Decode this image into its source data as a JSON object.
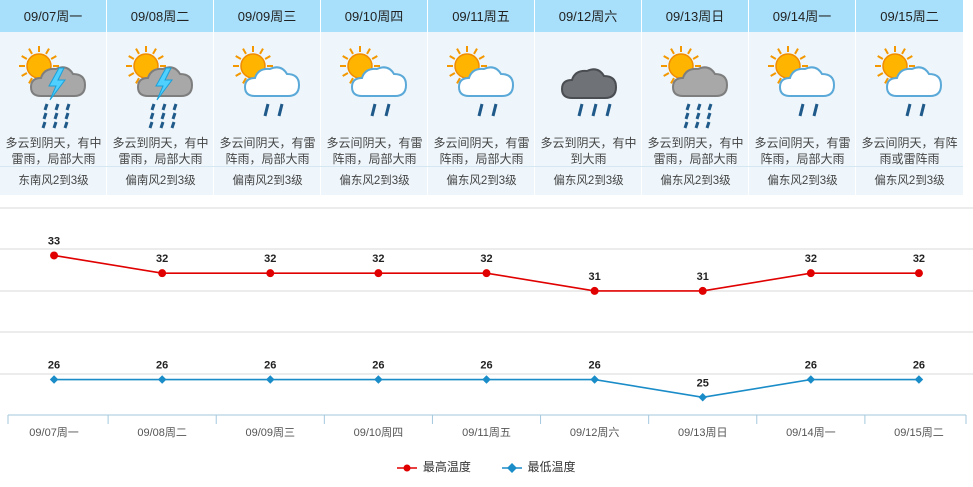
{
  "days": [
    {
      "date": "09/07周一",
      "desc": "多云到阴天，有中雷雨，局部大雨",
      "wind": "东南风2到3级",
      "icon": "partly-cloudy-thunderstorm-icon"
    },
    {
      "date": "09/08周二",
      "desc": "多云到阴天，有中雷雨，局部大雨",
      "wind": "偏南风2到3级",
      "icon": "partly-cloudy-thunderstorm-icon"
    },
    {
      "date": "09/09周三",
      "desc": "多云间阴天，有雷阵雨，局部大雨",
      "wind": "偏南风2到3级",
      "icon": "partly-cloudy-rain-icon"
    },
    {
      "date": "09/10周四",
      "desc": "多云间阴天，有雷阵雨，局部大雨",
      "wind": "偏东风2到3级",
      "icon": "partly-cloudy-rain-icon"
    },
    {
      "date": "09/11周五",
      "desc": "多云间阴天，有雷阵雨，局部大雨",
      "wind": "偏东风2到3级",
      "icon": "partly-cloudy-rain-icon"
    },
    {
      "date": "09/12周六",
      "desc": "多云到阴天，有中到大雨",
      "wind": "偏东风2到3级",
      "icon": "cloudy-rain-icon"
    },
    {
      "date": "09/13周日",
      "desc": "多云到阴天，有中雷雨，局部大雨",
      "wind": "偏东风2到3级",
      "icon": "partly-cloudy-heavy-rain-icon"
    },
    {
      "date": "09/14周一",
      "desc": "多云间阴天，有雷阵雨，局部大雨",
      "wind": "偏东风2到3级",
      "icon": "partly-cloudy-rain-icon"
    },
    {
      "date": "09/15周二",
      "desc": "多云间阴天，有阵雨或雷阵雨",
      "wind": "偏东风2到3级",
      "icon": "partly-cloudy-rain-icon"
    }
  ],
  "chart_data": {
    "type": "line",
    "categories": [
      "09/07周一",
      "09/08周二",
      "09/09周三",
      "09/10周四",
      "09/11周五",
      "09/12周六",
      "09/13周日",
      "09/14周一",
      "09/15周二"
    ],
    "series": [
      {
        "name": "最高温度",
        "color": "#e00000",
        "values": [
          33,
          32,
          32,
          32,
          32,
          31,
          31,
          32,
          32
        ]
      },
      {
        "name": "最低温度",
        "color": "#1a8cc8",
        "values": [
          26,
          26,
          26,
          26,
          26,
          26,
          25,
          26,
          26
        ]
      }
    ],
    "grid": true,
    "legend_position": "bottom"
  },
  "colors": {
    "header_bg": "#a8e0fb",
    "panel_bg": "#eef6fb",
    "max_line": "#e00000",
    "min_line": "#1a8cc8"
  }
}
